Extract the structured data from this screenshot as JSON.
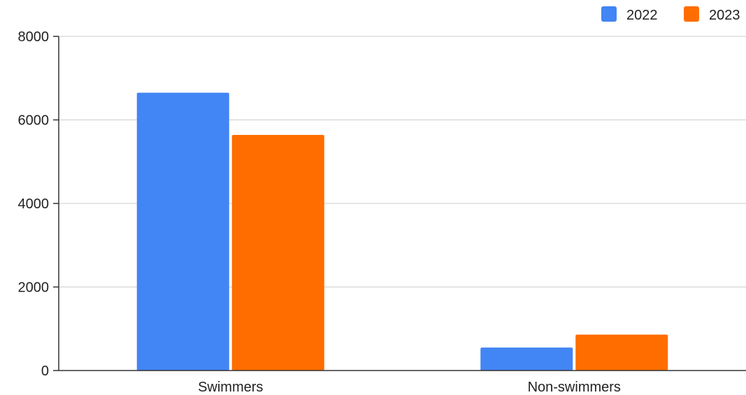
{
  "chart_data": {
    "type": "bar",
    "title": "",
    "xlabel": "",
    "ylabel": "",
    "categories": [
      "Swimmers",
      "Non-swimmers"
    ],
    "series": [
      {
        "name": "2022",
        "values": [
          6650,
          550
        ],
        "color": "#4285F4"
      },
      {
        "name": "2023",
        "values": [
          5640,
          860
        ],
        "color": "#FF6D01"
      }
    ],
    "ylim": [
      0,
      8000
    ],
    "yticks": [
      0,
      2000,
      4000,
      6000,
      8000
    ],
    "ytick_labels": [
      "0",
      "2000",
      "4000",
      "6000",
      "8000"
    ],
    "grid": true,
    "legend_position": "top-right"
  }
}
